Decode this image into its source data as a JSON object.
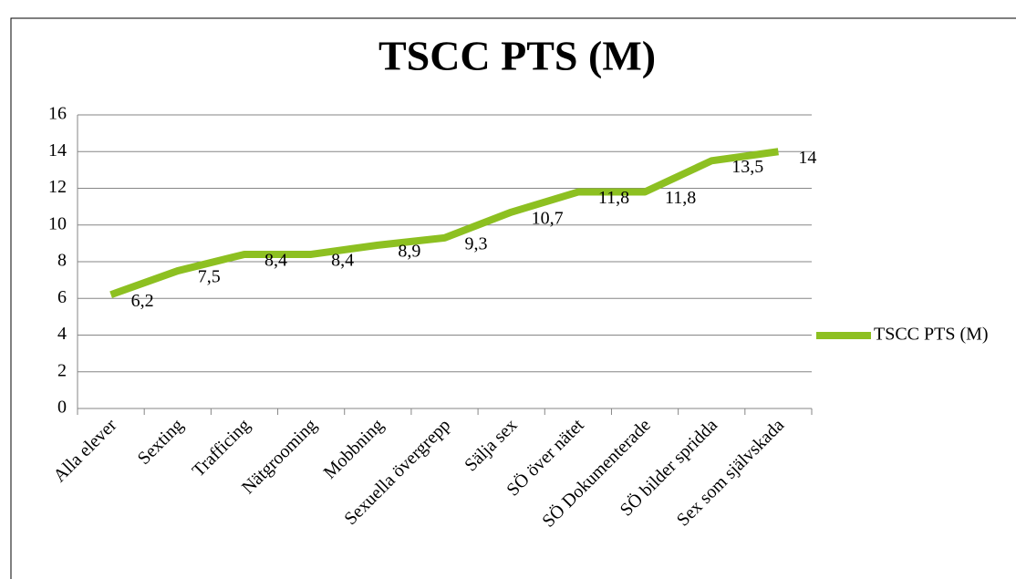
{
  "chart_data": {
    "type": "line",
    "title": "TSCC PTS (M)",
    "categories": [
      "Alla elever",
      "Sexting",
      "Trafficing",
      "Nätgrooming",
      "Mobbning",
      "Sexuella övergrepp",
      "Sälja sex",
      "SÖ över nätet",
      "SÖ Dokumenterade",
      "SÖ bilder spridda",
      "Sex som självskada"
    ],
    "series": [
      {
        "name": "TSCC PTS (M)",
        "color": "#8dc021",
        "values": [
          6.2,
          7.5,
          8.4,
          8.4,
          8.9,
          9.3,
          10.7,
          11.8,
          11.8,
          13.5,
          14
        ],
        "value_labels": [
          "6,2",
          "7,5",
          "8,4",
          "8,4",
          "8,9",
          "9,3",
          "10,7",
          "11,8",
          "11,8",
          "13,5",
          "14"
        ]
      }
    ],
    "ylim": [
      0,
      16
    ],
    "yticks": [
      0,
      2,
      4,
      6,
      8,
      10,
      12,
      14,
      16
    ],
    "grid": true,
    "legend": "right"
  }
}
